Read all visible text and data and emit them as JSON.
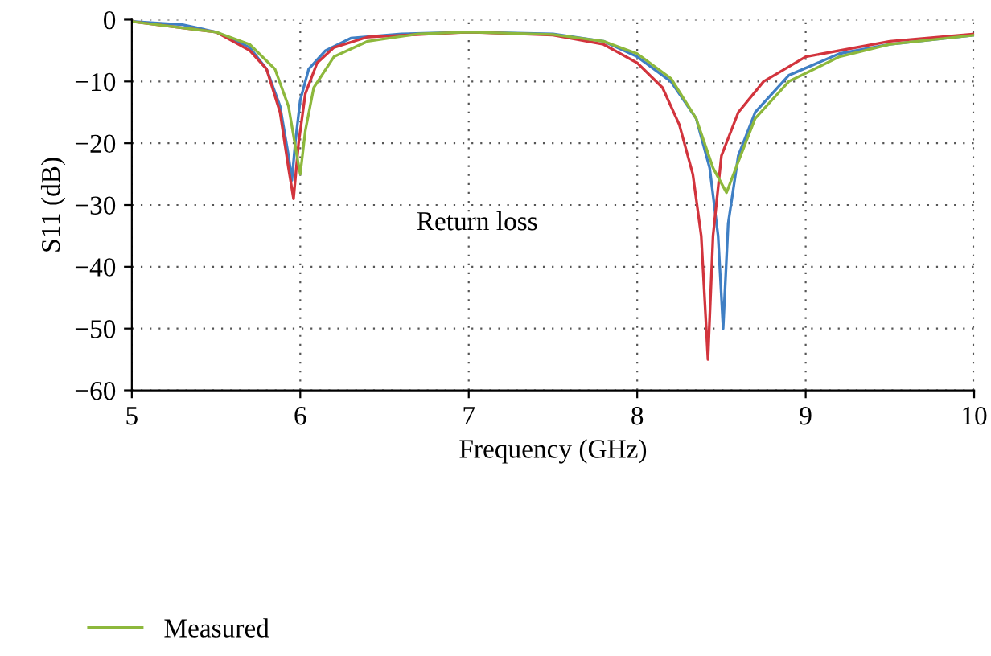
{
  "chart_data": {
    "type": "line",
    "xlabel": "Frequency (GHz)",
    "ylabel": "S11 (dB)",
    "annotations": [
      "Return loss"
    ],
    "xlim": [
      5,
      10
    ],
    "xticks": [
      5,
      6,
      7,
      8,
      9,
      10
    ],
    "ylim": [
      -60,
      0
    ],
    "yticks": [
      0,
      -10,
      -20,
      -30,
      -40,
      -50,
      -60
    ],
    "grid": true,
    "legend": "bottom left",
    "line_style": "solid",
    "marker": "none",
    "series": [
      {
        "color": "#3f7fc4",
        "x": [
          5,
          5.3,
          5.5,
          5.7,
          5.8,
          5.88,
          5.93,
          5.95,
          5.97,
          6.0,
          6.05,
          6.15,
          6.3,
          6.6,
          7,
          7.5,
          7.8,
          8.0,
          8.2,
          8.35,
          8.43,
          8.48,
          8.51,
          8.54,
          8.6,
          8.7,
          8.9,
          9.2,
          9.5,
          10
        ],
        "values": [
          -0.3,
          -0.8,
          -2,
          -4.5,
          -8,
          -14,
          -22,
          -26,
          -20,
          -13,
          -8,
          -5,
          -3,
          -2.3,
          -2,
          -2.3,
          -3.5,
          -6,
          -10,
          -16,
          -24,
          -35,
          -50,
          -33,
          -22,
          -15,
          -9,
          -5.5,
          -4,
          -2.5
        ]
      },
      {
        "color": "#d2343d",
        "x": [
          5,
          5.5,
          5.7,
          5.8,
          5.88,
          5.93,
          5.96,
          5.99,
          6.03,
          6.1,
          6.2,
          6.4,
          7,
          7.5,
          7.8,
          8.0,
          8.15,
          8.25,
          8.33,
          8.38,
          8.42,
          8.45,
          8.5,
          8.6,
          8.75,
          9.0,
          9.5,
          10
        ],
        "values": [
          -0.3,
          -2,
          -5,
          -8,
          -15,
          -24,
          -29,
          -20,
          -12,
          -7,
          -4.5,
          -2.8,
          -2,
          -2.5,
          -4,
          -7,
          -11,
          -17,
          -25,
          -35,
          -55,
          -35,
          -22,
          -15,
          -10,
          -6,
          -3.5,
          -2.3
        ]
      },
      {
        "name": "Measured",
        "color": "#8db83c",
        "x": [
          5,
          5.5,
          5.7,
          5.85,
          5.93,
          5.98,
          6.0,
          6.03,
          6.08,
          6.2,
          6.4,
          6.7,
          7,
          7.5,
          7.8,
          8.0,
          8.2,
          8.35,
          8.45,
          8.53,
          8.6,
          8.7,
          8.9,
          9.2,
          9.5,
          10
        ],
        "values": [
          -0.3,
          -2,
          -4,
          -8,
          -14,
          -22,
          -25,
          -18,
          -11,
          -6,
          -3.5,
          -2.3,
          -2,
          -2.4,
          -3.5,
          -5.5,
          -9.5,
          -16,
          -24,
          -28,
          -23,
          -16,
          -10,
          -6,
          -4,
          -2.5
        ]
      }
    ]
  }
}
